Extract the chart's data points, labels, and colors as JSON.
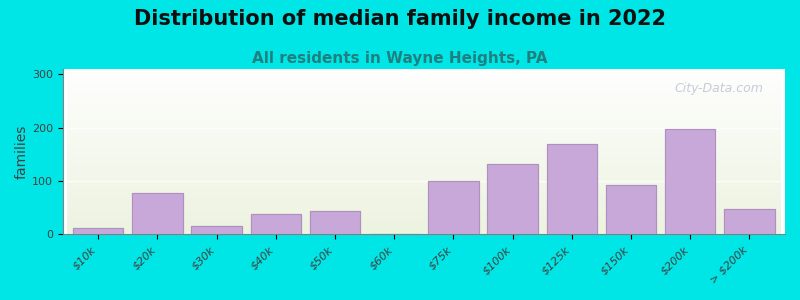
{
  "title": "Distribution of median family income in 2022",
  "subtitle": "All residents in Wayne Heights, PA",
  "xlabel": "",
  "ylabel": "families",
  "categories": [
    "$10k",
    "$20k",
    "$30k",
    "$40k",
    "$50k",
    "$60k",
    "$75k",
    "$100k",
    "$125k",
    "$150k",
    "$200k",
    "> $200k"
  ],
  "values": [
    12,
    78,
    15,
    38,
    43,
    0,
    100,
    132,
    170,
    93,
    197,
    47
  ],
  "bar_color": "#c8a8d8",
  "bar_edge_color": "#b090c0",
  "bg_outer": "#00e5e5",
  "bg_plot_top": "#e8f0d8",
  "bg_plot_bottom": "#ffffff",
  "title_fontsize": 15,
  "subtitle_fontsize": 11,
  "ylabel_fontsize": 10,
  "tick_fontsize": 8,
  "ylim": [
    0,
    310
  ],
  "yticks": [
    0,
    100,
    200,
    300
  ],
  "watermark": "City-Data.com",
  "watermark_color": "#b0b8c8"
}
